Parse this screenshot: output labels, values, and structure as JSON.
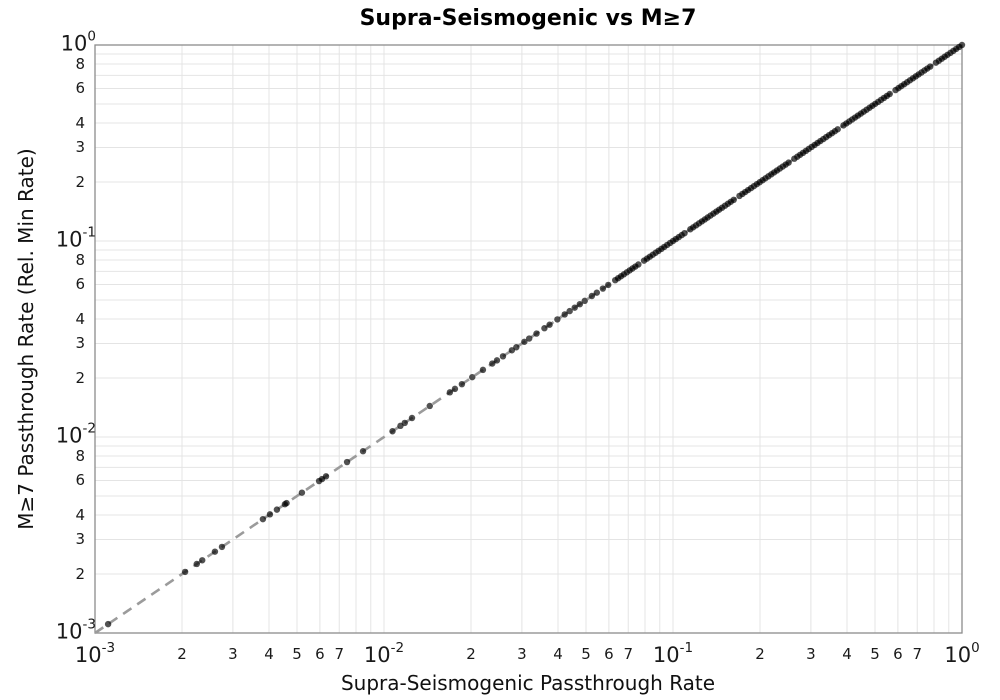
{
  "colors": {
    "background": "#ffffff",
    "grid": "#e4e4e4",
    "spine": "#8c8c8c",
    "reference_line": "#9b9b9b",
    "point": "#000000",
    "tick_label": "#1a1a1a",
    "title": "#000000"
  },
  "axes": {
    "x": {
      "scale": "log",
      "min": 0.001,
      "max": 1.0,
      "base_label": "10",
      "major_exponents": [
        -3,
        -2,
        -1,
        0
      ],
      "minor_label_digits": [
        2,
        3,
        4,
        5,
        6,
        7
      ],
      "grid_digits": [
        2,
        3,
        4,
        5,
        6,
        7,
        8,
        9
      ],
      "decades": [
        -3,
        -2,
        -1
      ]
    },
    "y": {
      "scale": "log",
      "min": 0.001,
      "max": 1.0,
      "base_label": "10",
      "major_exponents": [
        0,
        -1,
        -2,
        -3
      ],
      "minor_label_digits": [
        8,
        6,
        4,
        3,
        2
      ],
      "grid_digits": [
        2,
        3,
        4,
        5,
        6,
        7,
        8,
        9
      ],
      "decades": [
        -1,
        -2,
        -3
      ]
    }
  },
  "chart_data": {
    "type": "scatter",
    "title": "Supra-Seismogenic vs M≥7",
    "xlabel": "Supra-Seismogenic Passthrough Rate",
    "ylabel": "M≥7 Passthrough Rate (Rel. Min Rate)",
    "xscale": "log",
    "yscale": "log",
    "xlim": [
      0.001,
      1.0
    ],
    "ylim": [
      0.001,
      1.0
    ],
    "grid": true,
    "legend": false,
    "identity_line": {
      "relation": "y = x",
      "style": "dashed",
      "color": "#9b9b9b",
      "from": [
        0.001,
        0.001
      ],
      "to": [
        1.0,
        1.0
      ]
    },
    "series": [
      {
        "name": "passthrough-rates",
        "marker": "circle",
        "color": "#000000",
        "opacity": 0.68,
        "marker_size_px": 6.4,
        "y_rule": "y = x (every point lies on the 1:1 identity line)",
        "x": [
          0.00111,
          0.00205,
          0.00225,
          0.00235,
          0.0026,
          0.00275,
          0.00381,
          0.00403,
          0.00426,
          0.00454,
          0.0046,
          0.0052,
          0.00596,
          0.0061,
          0.0063,
          0.00745,
          0.00846,
          0.0107,
          0.0114,
          0.0118,
          0.0125,
          0.0144,
          0.0169,
          0.0176,
          0.0186,
          0.0202,
          0.022,
          0.0237,
          0.0246,
          0.0258,
          0.0277,
          0.0287,
          0.0306,
          0.0318,
          0.0337,
          0.0359,
          0.0374,
          0.0398,
          0.0422,
          0.0439,
          0.0457,
          0.0476,
          0.0495,
          0.0524,
          0.0545,
          0.0572,
          0.0597,
          0.0631,
          0.0646,
          0.0661,
          0.0676,
          0.0692,
          0.0708,
          0.0724,
          0.0741,
          0.0759,
          0.0794,
          0.0813,
          0.0832,
          0.0851,
          0.0871,
          0.0891,
          0.0912,
          0.0933,
          0.0955,
          0.0977,
          0.1,
          0.1023,
          0.1047,
          0.1072,
          0.1096,
          0.1148,
          0.1175,
          0.1202,
          0.123,
          0.1259,
          0.1288,
          0.1318,
          0.1349,
          0.138,
          0.1413,
          0.1445,
          0.1479,
          0.1514,
          0.1549,
          0.1585,
          0.1622,
          0.1698,
          0.1738,
          0.1778,
          0.182,
          0.1862,
          0.1905,
          0.195,
          0.1995,
          0.2042,
          0.2089,
          0.2138,
          0.2188,
          0.2239,
          0.2291,
          0.2344,
          0.2399,
          0.2455,
          0.2512,
          0.263,
          0.2692,
          0.2754,
          0.2818,
          0.2884,
          0.2951,
          0.302,
          0.309,
          0.3162,
          0.3236,
          0.3311,
          0.3388,
          0.3467,
          0.3548,
          0.3631,
          0.3715,
          0.389,
          0.3981,
          0.4074,
          0.4169,
          0.4266,
          0.4365,
          0.4467,
          0.4571,
          0.4677,
          0.4786,
          0.4898,
          0.5012,
          0.5129,
          0.5248,
          0.537,
          0.5495,
          0.5623,
          0.5888,
          0.6026,
          0.6166,
          0.631,
          0.6457,
          0.6607,
          0.6761,
          0.6918,
          0.7079,
          0.7244,
          0.7413,
          0.7586,
          0.7762,
          0.8128,
          0.8318,
          0.8511,
          0.871,
          0.8913,
          0.912,
          0.9333,
          0.955,
          0.9772,
          1.0
        ]
      }
    ]
  }
}
